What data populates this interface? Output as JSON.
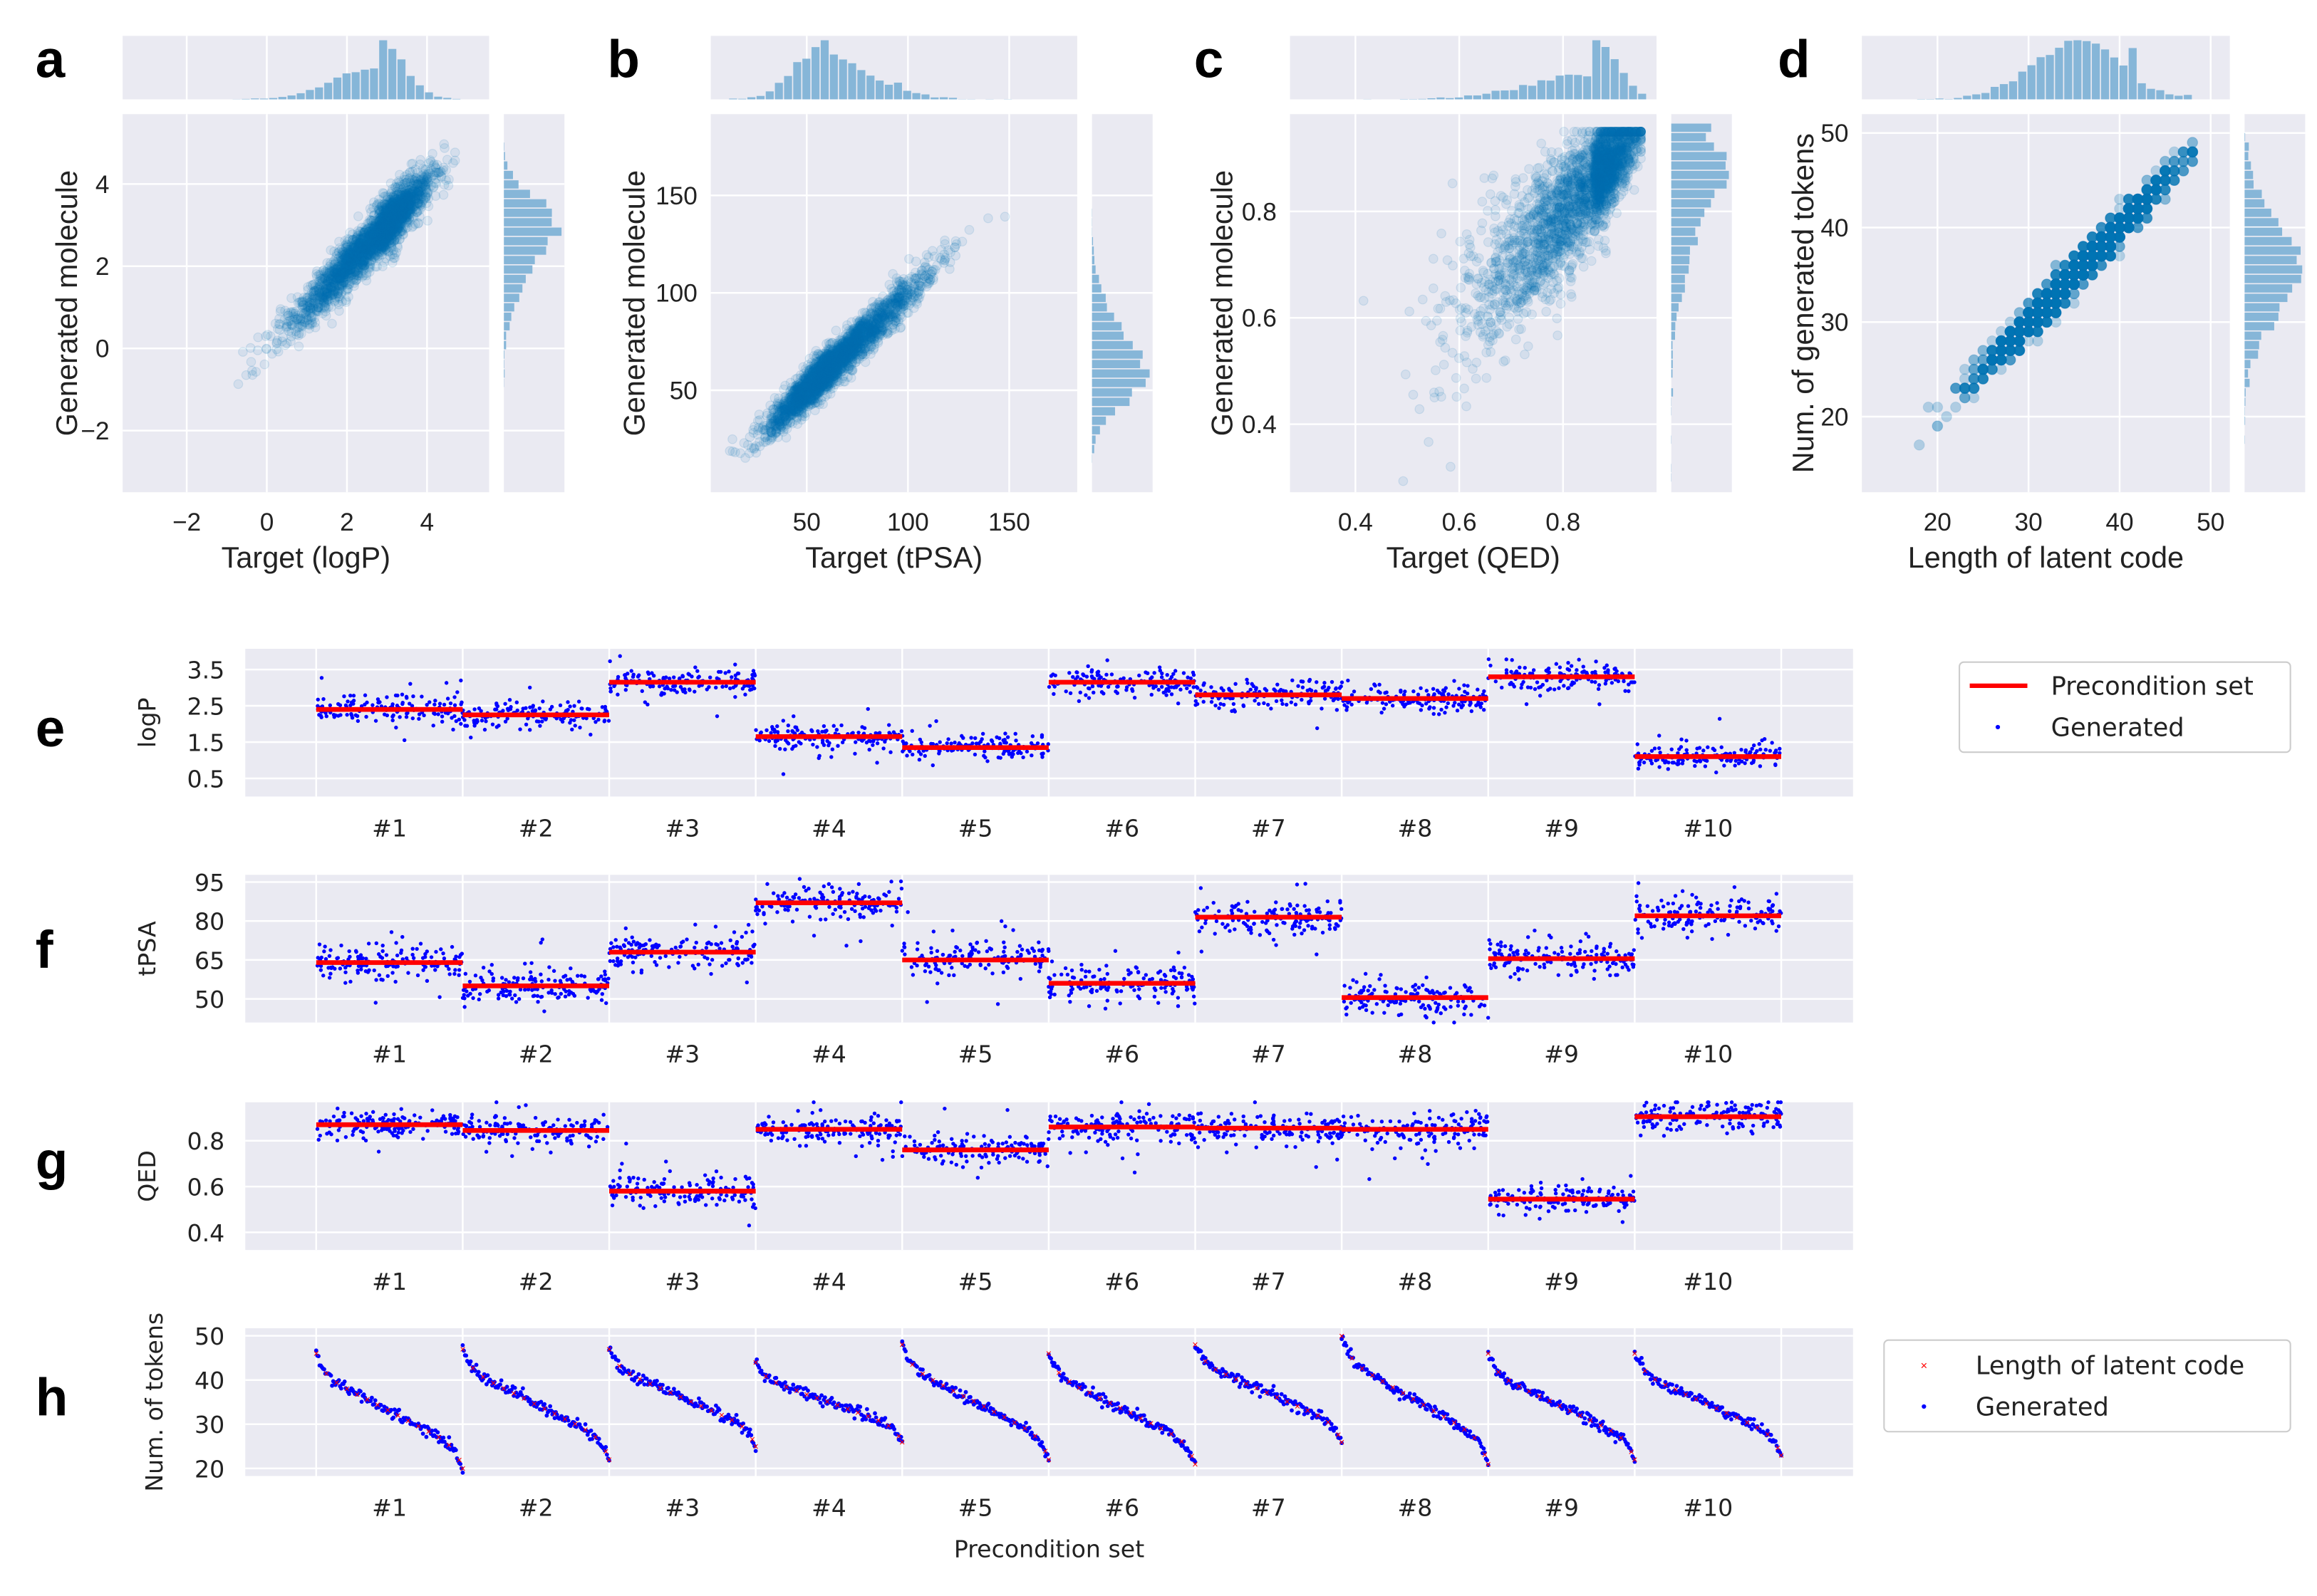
{
  "colors": {
    "background": "#eaeaf2",
    "grid": "#ffffff",
    "scatter": "#0173b2",
    "histogram": "#86b6d8",
    "precondition": "#ff0000",
    "generated": "#0000ff"
  },
  "chart_data": [
    {
      "panel_label": "a",
      "type": "scatter",
      "marginal_histograms": true,
      "xlabel": "Target (logP)",
      "ylabel": "Generated molecule",
      "xticks": [
        -2,
        0,
        2,
        4
      ],
      "yticks": [
        -2,
        0,
        2,
        4
      ],
      "xlim": [
        -3.6,
        5.55
      ],
      "ylim": [
        -3.5,
        5.7
      ],
      "distribution": {
        "x_mode": 2.8,
        "x_sd_left": 1.1,
        "x_sd_right": 0.6,
        "x_max": 4.7,
        "y_noise_sd": 0.3
      }
    },
    {
      "panel_label": "b",
      "type": "scatter",
      "marginal_histograms": true,
      "xlabel": "Target (tPSA)",
      "ylabel": "Generated molecule",
      "xticks": [
        50,
        100,
        150
      ],
      "yticks": [
        50,
        100,
        150
      ],
      "xlim": [
        2.6,
        183.6
      ],
      "ylim": [
        -2.3,
        191.7
      ],
      "distribution": {
        "x_mode": 62,
        "x_sd_left": 15,
        "x_sd_right": 22,
        "x_min": 12,
        "y_noise_sd": 5
      }
    },
    {
      "panel_label": "c",
      "type": "scatter",
      "marginal_histograms": true,
      "xlabel": "Target (QED)",
      "ylabel": "Generated molecule",
      "xticks": [
        0.4,
        0.6,
        0.8
      ],
      "yticks": [
        0.4,
        0.6,
        0.8
      ],
      "xlim": [
        0.274,
        0.98
      ],
      "ylim": [
        0.272,
        0.983
      ],
      "distribution": {
        "x_mode": 0.86,
        "x_sd_left": 0.12,
        "x_sd_right": 0.04,
        "x_max": 0.95,
        "y_noise_sd": 0.05
      }
    },
    {
      "panel_label": "d",
      "type": "scatter",
      "marginal_histograms": true,
      "xlabel": "Length of latent code",
      "ylabel": "Num. of generated tokens",
      "xticks": [
        20,
        30,
        40,
        50
      ],
      "yticks": [
        20,
        30,
        40,
        50
      ],
      "xlim": [
        11.7,
        52.1
      ],
      "ylim": [
        12,
        52
      ],
      "distribution": {
        "x_mode": 35,
        "x_sd_left": 5,
        "x_sd_right": 5,
        "x_min": 14,
        "x_max": 48,
        "y_noise_sd": 0.8
      }
    },
    {
      "panel_label": "e",
      "type": "scatter",
      "ylabel": "logP",
      "categories": [
        "#1",
        "#2",
        "#3",
        "#4",
        "#5",
        "#6",
        "#7",
        "#8",
        "#9",
        "#10"
      ],
      "yticks": [
        "0.5",
        "1.5",
        "2.5",
        "3.5"
      ],
      "ylim": [
        0.0,
        4.07
      ],
      "noise_sd": 0.18,
      "series": [
        {
          "name": "Precondition set",
          "values": [
            2.4,
            2.25,
            3.15,
            1.65,
            1.35,
            3.15,
            2.8,
            2.7,
            3.3,
            1.1
          ]
        },
        {
          "name": "Generated"
        }
      ]
    },
    {
      "panel_label": "f",
      "type": "scatter",
      "ylabel": "tPSA",
      "categories": [
        "#1",
        "#2",
        "#3",
        "#4",
        "#5",
        "#6",
        "#7",
        "#8",
        "#9",
        "#10"
      ],
      "yticks": [
        "50",
        "65",
        "80",
        "95"
      ],
      "ylim": [
        40.9,
        97.8
      ],
      "noise_sd": 3.2,
      "series": [
        {
          "values": [
            64,
            55,
            68,
            87,
            65,
            56,
            81.5,
            50.5,
            65.5,
            82
          ]
        },
        {}
      ]
    },
    {
      "panel_label": "g",
      "type": "scatter",
      "ylabel": "QED",
      "categories": [
        "#1",
        "#2",
        "#3",
        "#4",
        "#5",
        "#6",
        "#7",
        "#8",
        "#9",
        "#10"
      ],
      "yticks": [
        "0.4",
        "0.6",
        "0.8"
      ],
      "ylim": [
        0.323,
        0.968
      ],
      "noise_sd": 0.03,
      "series": [
        {
          "values": [
            0.87,
            0.845,
            0.58,
            0.85,
            0.76,
            0.86,
            0.855,
            0.85,
            0.545,
            0.905
          ]
        },
        {}
      ]
    },
    {
      "panel_label": "h",
      "type": "scatter",
      "ylabel": "Num. of tokens",
      "xlabel": "Precondition set",
      "categories": [
        "#1",
        "#2",
        "#3",
        "#4",
        "#5",
        "#6",
        "#7",
        "#8",
        "#9",
        "#10"
      ],
      "yticks": [
        "20",
        "30",
        "40",
        "50"
      ],
      "ylim": [
        18.3,
        51.7
      ],
      "series": [
        {
          "name": "Length of latent code",
          "max": [
            46,
            47,
            47,
            44,
            48,
            46,
            48,
            50,
            46,
            46
          ],
          "min": [
            20,
            22,
            25,
            26,
            22,
            21,
            26,
            21,
            22,
            23
          ]
        },
        {
          "name": "Generated"
        }
      ]
    }
  ]
}
